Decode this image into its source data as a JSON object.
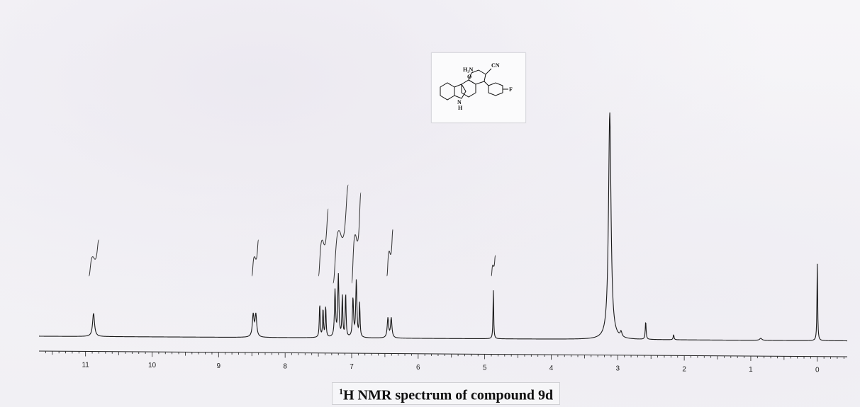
{
  "chart_data": {
    "type": "line",
    "title": "H NMR spectrum of compound 9d",
    "title_superscript": "1",
    "xlabel": "",
    "ylabel": "",
    "xlim": [
      11.7,
      -0.45
    ],
    "x_reversed": true,
    "ticks": [
      "11",
      "10",
      "9",
      "8",
      "7",
      "6",
      "5",
      "4",
      "3",
      "2",
      "1",
      "0"
    ],
    "grid": false,
    "peaks": [
      {
        "ppm": 10.88,
        "height": 0.09,
        "width": 0.035,
        "mult": 1
      },
      {
        "ppm": 8.46,
        "height": 0.1,
        "width": 0.03,
        "mult": 2,
        "j": 0.04
      },
      {
        "ppm": 7.48,
        "height": 0.13,
        "width": 0.015,
        "mult": 1
      },
      {
        "ppm": 7.43,
        "height": 0.11,
        "width": 0.015,
        "mult": 1
      },
      {
        "ppm": 7.39,
        "height": 0.12,
        "width": 0.015,
        "mult": 1
      },
      {
        "ppm": 7.25,
        "height": 0.18,
        "width": 0.02,
        "mult": 1
      },
      {
        "ppm": 7.2,
        "height": 0.24,
        "width": 0.02,
        "mult": 1
      },
      {
        "ppm": 7.14,
        "height": 0.16,
        "width": 0.015,
        "mult": 1
      },
      {
        "ppm": 7.09,
        "height": 0.17,
        "width": 0.015,
        "mult": 1
      },
      {
        "ppm": 6.98,
        "height": 0.15,
        "width": 0.02,
        "mult": 1
      },
      {
        "ppm": 6.93,
        "height": 0.22,
        "width": 0.02,
        "mult": 1
      },
      {
        "ppm": 6.88,
        "height": 0.13,
        "width": 0.015,
        "mult": 1
      },
      {
        "ppm": 6.43,
        "height": 0.09,
        "width": 0.025,
        "mult": 2,
        "j": 0.05
      },
      {
        "ppm": 4.87,
        "height": 0.19,
        "width": 0.012,
        "mult": 1
      },
      {
        "ppm": 3.12,
        "height": 0.88,
        "width": 0.045,
        "mult": 1
      },
      {
        "ppm": 2.95,
        "height": 0.02,
        "width": 0.03,
        "mult": 1
      },
      {
        "ppm": 2.58,
        "height": 0.07,
        "width": 0.015,
        "mult": 1
      },
      {
        "ppm": 2.16,
        "height": 0.02,
        "width": 0.015,
        "mult": 1
      },
      {
        "ppm": 0.85,
        "height": 0.008,
        "width": 0.04,
        "mult": 1
      },
      {
        "ppm": 0.0,
        "height": 0.3,
        "width": 0.012,
        "mult": 1
      }
    ],
    "integrals": [
      {
        "start": 10.95,
        "end": 10.8,
        "rise": 0.14
      },
      {
        "start": 8.5,
        "end": 8.4,
        "rise": 0.14
      },
      {
        "start": 7.5,
        "end": 7.35,
        "rise": 0.26
      },
      {
        "start": 7.28,
        "end": 7.05,
        "rise": 0.38
      },
      {
        "start": 7.0,
        "end": 6.86,
        "rise": 0.35
      },
      {
        "start": 6.47,
        "end": 6.38,
        "rise": 0.18
      },
      {
        "start": 4.9,
        "end": 4.84,
        "rise": 0.08
      }
    ]
  },
  "structure": {
    "label_nh2": "H₂N",
    "label_cn": "CN",
    "label_o": "O",
    "label_f": "F",
    "label_nh": "N",
    "label_h": "H"
  }
}
